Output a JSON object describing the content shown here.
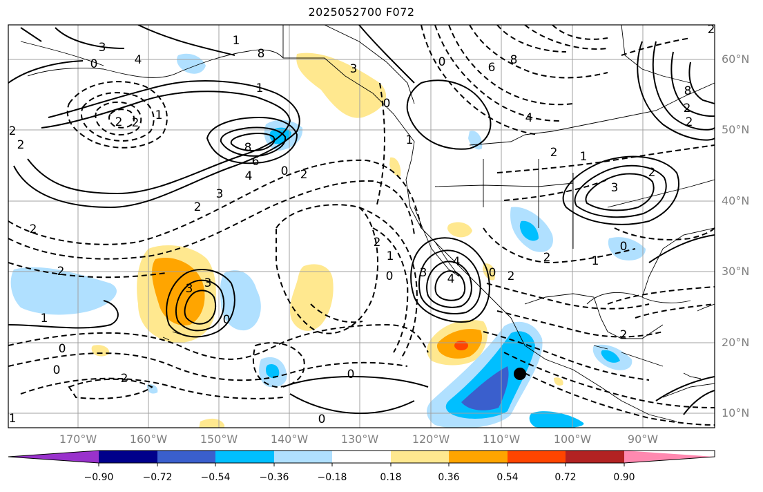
{
  "title": "2025052700 F072",
  "lon_labels": [
    "170°W",
    "160°W",
    "150°W",
    "140°W",
    "130°W",
    "120°W",
    "110°W",
    "100°W",
    "90°W"
  ],
  "lat_labels": [
    "60°N",
    "50°N",
    "40°N",
    "30°N",
    "20°N",
    "10°N"
  ],
  "contour_labels": [
    "3",
    "4",
    "8",
    "0",
    "2",
    "1",
    "2",
    "2",
    "6",
    "8",
    "4",
    "3",
    "2",
    "3",
    "8",
    "6",
    "4",
    "2",
    "0",
    "2",
    "3",
    "2",
    "1",
    "2",
    "1",
    "3",
    "2",
    "0",
    "8",
    "2",
    "4",
    "2",
    "2",
    "0",
    "2",
    "2",
    "1",
    "0",
    "3",
    "3",
    "4",
    "0",
    "2",
    "1",
    "0",
    "2",
    "0",
    "0",
    "2",
    "0",
    "0",
    "1",
    "1",
    "1",
    "1",
    "2",
    "0"
  ],
  "colorbar": {
    "tick_labels": [
      "−0.90",
      "−0.72",
      "−0.54",
      "−0.36",
      "−0.18",
      "0.18",
      "0.36",
      "0.54",
      "0.72",
      "0.90"
    ],
    "colors": [
      "#9932cc",
      "#00008b",
      "#3a5fcd",
      "#00bfff",
      "#b0e0ff",
      "#ffffff",
      "#ffe88f",
      "#ffa500",
      "#ff4500",
      "#b22222",
      "#ff89b0"
    ]
  }
}
